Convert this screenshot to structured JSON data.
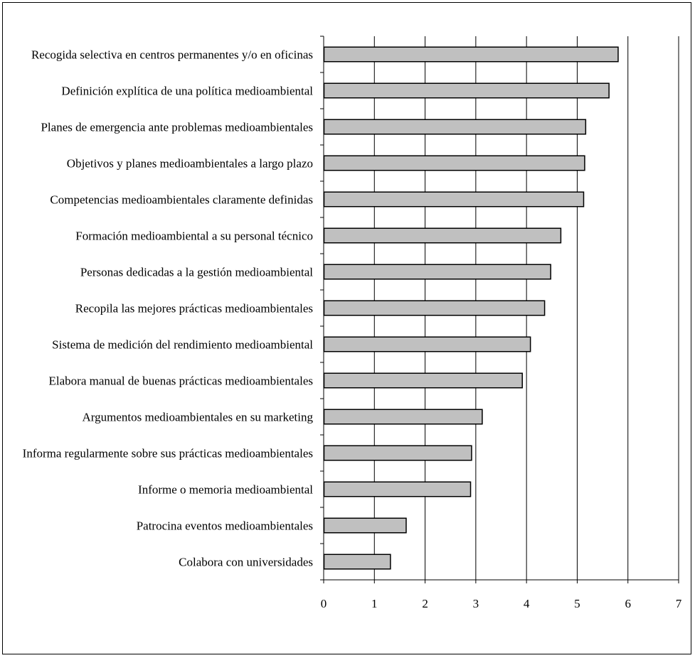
{
  "chart_data": {
    "type": "bar",
    "orientation": "horizontal",
    "categories": [
      "Recogida selectiva en centros permanentes y/o en oficinas",
      "Definición explítica de una política medioambiental",
      "Planes de emergencia ante problemas medioambientales",
      "Objetivos y planes medioambientales a largo plazo",
      "Competencias medioambientales claramente definidas",
      "Formación medioambiental a su personal técnico",
      "Personas dedicadas a la gestión medioambiental",
      "Recopila las mejores prácticas medioambientales",
      "Sistema de medición del rendimiento medioambiental",
      "Elabora manual de buenas prácticas medioambientales",
      "Argumentos medioambientales en su marketing",
      "Informa regularmente sobre sus prácticas medioambientales",
      "Informe o memoria medioambiental",
      "Patrocina eventos medioambientales",
      "Colabora con universidades"
    ],
    "values": [
      5.8,
      5.62,
      5.16,
      5.14,
      5.12,
      4.67,
      4.47,
      4.35,
      4.07,
      3.91,
      3.12,
      2.91,
      2.89,
      1.62,
      1.31
    ],
    "xlim": [
      0,
      7
    ],
    "xticks": [
      "0",
      "1",
      "2",
      "3",
      "4",
      "5",
      "6",
      "7"
    ],
    "title": "",
    "xlabel": "",
    "ylabel": "",
    "grid": "vertical",
    "legend": "none",
    "colors": {
      "bar_fill": "#c0c0c0",
      "bar_stroke": "#000000",
      "grid": "#000000",
      "text": "#000000"
    }
  }
}
